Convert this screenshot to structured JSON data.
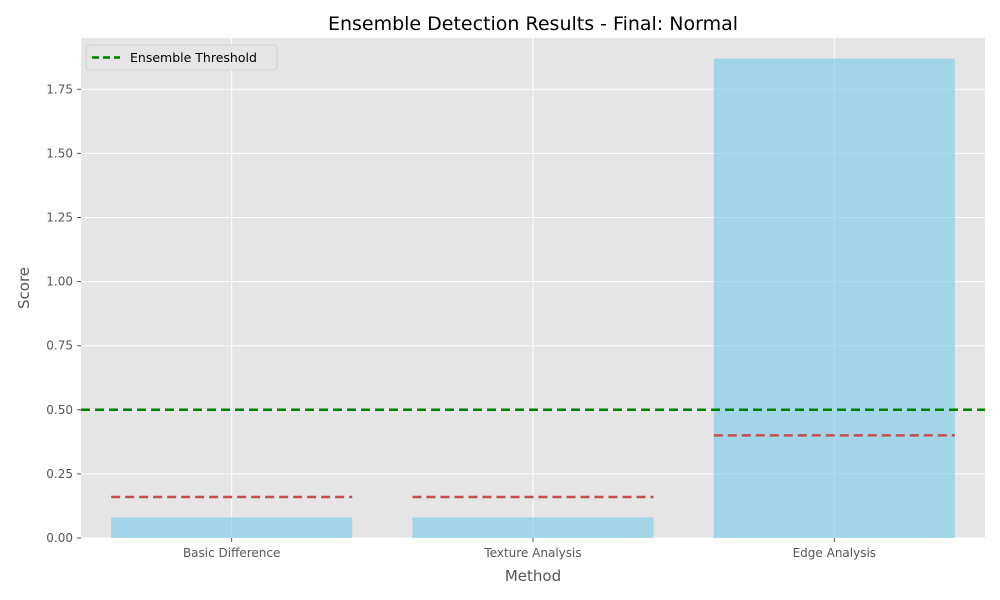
{
  "chart_data": {
    "type": "bar",
    "title": "Ensemble Detection Results - Final: Normal",
    "xlabel": "Method",
    "ylabel": "Score",
    "categories": [
      "Basic Difference",
      "Texture Analysis",
      "Edge Analysis"
    ],
    "values": [
      0.08,
      0.08,
      1.87
    ],
    "method_thresholds": [
      0.16,
      0.16,
      0.4
    ],
    "ensemble_threshold": 0.5,
    "ylim": [
      0,
      1.95
    ],
    "yticks": [
      0.0,
      0.25,
      0.5,
      0.75,
      1.0,
      1.25,
      1.5,
      1.75
    ],
    "ytick_labels": [
      "0.00",
      "0.25",
      "0.50",
      "0.75",
      "1.00",
      "1.25",
      "1.50",
      "1.75"
    ],
    "legend": {
      "position": "top-left",
      "entries": [
        "Ensemble Threshold"
      ]
    },
    "grid": true,
    "colors": {
      "bar": "#87ceeb",
      "method_threshold": "#c44e52",
      "ensemble_threshold": "#008000",
      "plot_background": "#e5e5e5",
      "grid": "#ffffff"
    }
  }
}
